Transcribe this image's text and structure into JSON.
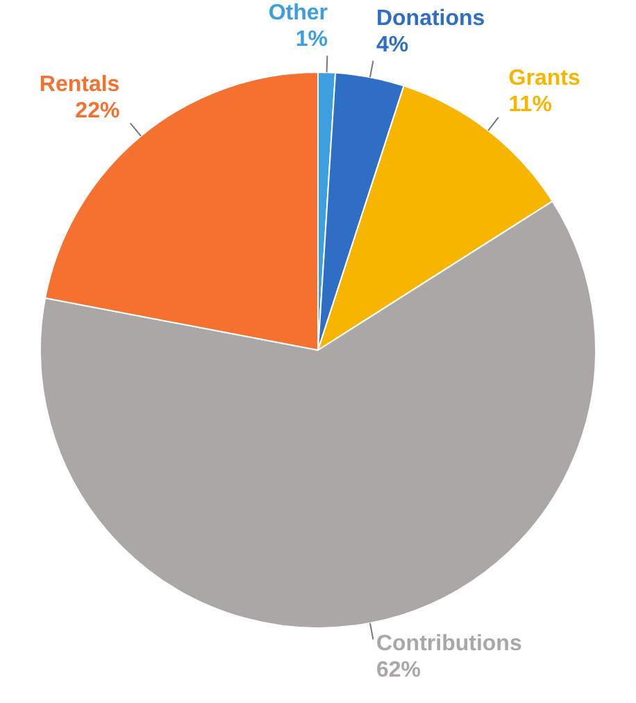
{
  "chart_data": {
    "type": "pie",
    "categories": [
      "Other",
      "Donations",
      "Grants",
      "Contributions",
      "Rentals"
    ],
    "values": [
      1,
      4,
      11,
      62,
      22
    ],
    "value_labels": [
      "1%",
      "4%",
      "11%",
      "62%",
      "22%"
    ],
    "colors": [
      "#3d9ee0",
      "#2e6ec4",
      "#f7b500",
      "#aba7a7",
      "#f47130"
    ]
  }
}
